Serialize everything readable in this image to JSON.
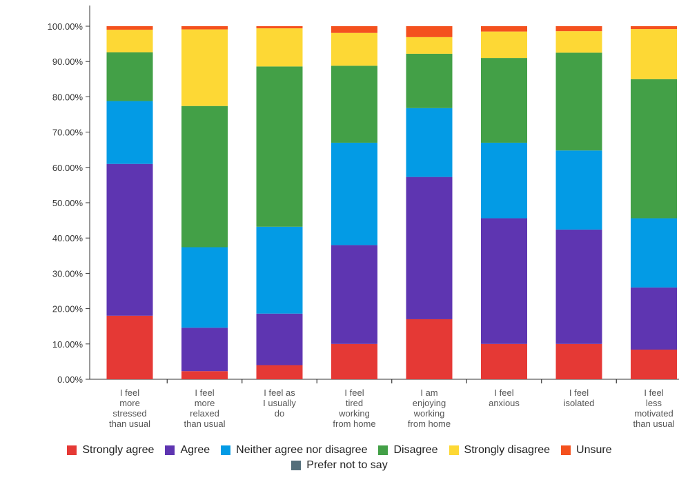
{
  "chart_data": {
    "type": "bar",
    "stacked": true,
    "ylim": [
      0,
      100
    ],
    "yticks": [
      "0.00%",
      "10.00%",
      "20.00%",
      "30.00%",
      "40.00%",
      "50.00%",
      "60.00%",
      "70.00%",
      "80.00%",
      "90.00%",
      "100.00%"
    ],
    "grid": false,
    "legend_position": "bottom",
    "categories": [
      [
        "I feel",
        "more",
        "stressed",
        "than usual"
      ],
      [
        "I feel",
        "more",
        "relaxed",
        "than usual"
      ],
      [
        "I feel as",
        "I usually",
        "do"
      ],
      [
        "I feel",
        "tired",
        "working",
        "from home"
      ],
      [
        "I am",
        "enjoying",
        "working",
        "from home"
      ],
      [
        "I feel",
        "anxious"
      ],
      [
        "I feel",
        "isolated"
      ],
      [
        "I feel",
        "less",
        "motivated",
        "than usual"
      ]
    ],
    "series": [
      {
        "name": "Strongly agree",
        "color": "#e53935",
        "values": [
          18.0,
          2.3,
          4.0,
          10.0,
          17.0,
          10.0,
          10.0,
          8.4
        ]
      },
      {
        "name": "Agree",
        "color": "#5e35b1",
        "values": [
          43.0,
          12.3,
          14.6,
          28.0,
          40.3,
          35.6,
          32.4,
          17.6
        ]
      },
      {
        "name": "Neither agree nor disagree",
        "color": "#039be5",
        "values": [
          17.8,
          22.8,
          24.6,
          29.0,
          19.5,
          21.4,
          22.4,
          19.6
        ]
      },
      {
        "name": "Disagree",
        "color": "#43a047",
        "values": [
          13.8,
          40.0,
          45.4,
          21.8,
          15.4,
          24.0,
          27.7,
          39.4
        ]
      },
      {
        "name": "Strongly disagree",
        "color": "#fdd835",
        "values": [
          6.4,
          21.7,
          10.8,
          9.3,
          4.7,
          7.5,
          6.1,
          14.2
        ]
      },
      {
        "name": "Unsure",
        "color": "#f4511e",
        "values": [
          1.0,
          0.9,
          0.6,
          1.9,
          3.1,
          1.5,
          1.4,
          0.8
        ]
      },
      {
        "name": "Prefer not to say",
        "color": "#546e7a",
        "values": [
          0,
          0,
          0,
          0,
          0,
          0,
          0,
          0
        ]
      }
    ]
  }
}
